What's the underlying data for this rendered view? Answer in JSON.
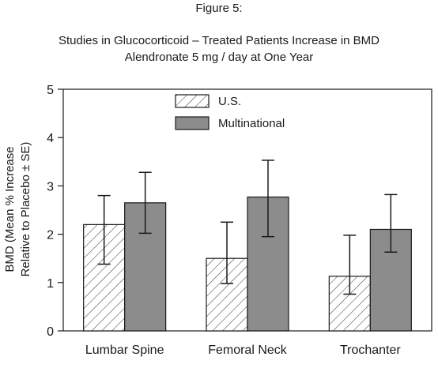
{
  "figure_label": "Figure 5:",
  "chart_data": {
    "type": "bar",
    "title": "Studies in Glucocorticoid – Treated Patients Increase in BMD",
    "subtitle": "Alendronate 5 mg / day at One Year",
    "ylabel_line1": "BMD (Mean % Increase",
    "ylabel_line2": "Relative to Placebo ± SE)",
    "xlabel": "",
    "ylim": [
      0,
      5
    ],
    "yticks": [
      "0",
      "1",
      "2",
      "3",
      "4",
      "5"
    ],
    "categories": [
      "Lumbar Spine",
      "Femoral Neck",
      "Trochanter"
    ],
    "series": [
      {
        "name": "U.S.",
        "values": [
          2.2,
          1.5,
          1.13
        ],
        "error_low": [
          1.38,
          0.98,
          0.76
        ],
        "error_high": [
          2.8,
          2.25,
          1.98
        ],
        "fill": "hatch"
      },
      {
        "name": "Multinational",
        "values": [
          2.65,
          2.77,
          2.1
        ],
        "error_low": [
          2.02,
          1.95,
          1.63
        ],
        "error_high": [
          3.28,
          3.53,
          2.82
        ],
        "fill": "#8c8c8c"
      }
    ],
    "legend_position": "top-center",
    "grid": false
  }
}
